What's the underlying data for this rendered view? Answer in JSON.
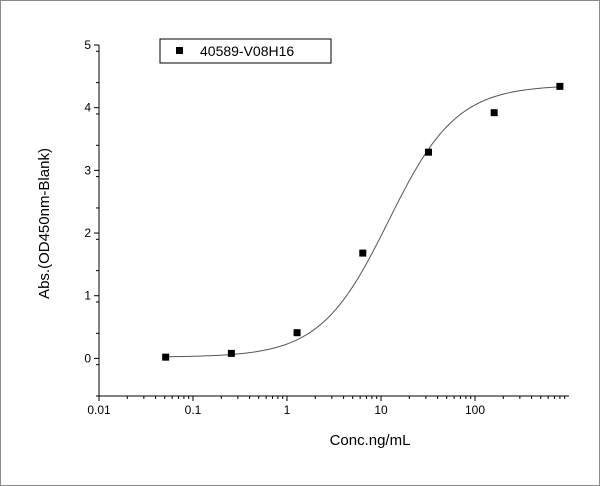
{
  "chart_data": {
    "type": "scatter",
    "title": "",
    "xlabel": "Conc.ng/mL",
    "ylabel": "Abs.(OD450nm-Blank)",
    "x_scale": "log",
    "xlim": [
      0.01,
      1000
    ],
    "ylim": [
      -0.6,
      5
    ],
    "x_ticks": [
      0.01,
      0.1,
      1,
      10,
      100
    ],
    "x_tick_labels": [
      "0.01",
      "0.1",
      "1",
      "10",
      "100"
    ],
    "y_ticks": [
      0,
      1,
      2,
      3,
      4,
      5
    ],
    "y_tick_labels": [
      "0",
      "1",
      "2",
      "3",
      "4",
      "5"
    ],
    "grid": false,
    "legend_position": "top-left",
    "series": [
      {
        "name": "40589-V08H16",
        "marker": "square",
        "color": "#000000",
        "x": [
          0.0512,
          0.256,
          1.28,
          6.4,
          32,
          160,
          800
        ],
        "y": [
          0.02,
          0.08,
          0.41,
          1.68,
          3.29,
          3.92,
          4.34
        ]
      }
    ],
    "fit_curve": {
      "model": "4PL",
      "bottom": 0.02,
      "top": 4.36,
      "ec50": 12,
      "hill": 1.2,
      "color": "#555555"
    }
  }
}
